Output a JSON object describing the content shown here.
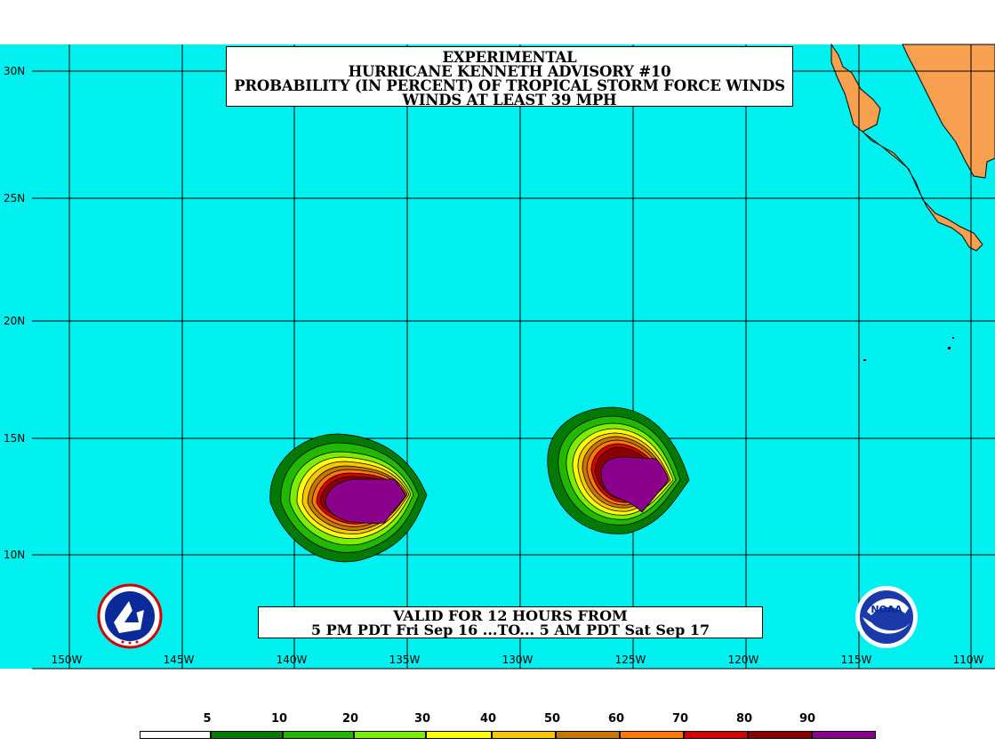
{
  "title": {
    "line1": "EXPERIMENTAL",
    "line2": "HURRICANE KENNETH ADVISORY #10",
    "line3": "PROBABILITY (IN PERCENT) OF TROPICAL STORM FORCE WINDS",
    "line4": "WINDS AT LEAST 39 MPH"
  },
  "valid": {
    "line1": "VALID FOR 12 HOURS FROM",
    "line2": "5 PM PDT Fri Sep 16 ...TO... 5 AM PDT Sat Sep 17"
  },
  "lat_labels": [
    "30N",
    "25N",
    "20N",
    "15N",
    "10N"
  ],
  "lon_labels": [
    "150W",
    "145W",
    "140W",
    "135W",
    "130W",
    "125W",
    "120W",
    "115W",
    "110W"
  ],
  "legend": {
    "ticks": [
      "5",
      "10",
      "20",
      "30",
      "40",
      "50",
      "60",
      "70",
      "80",
      "90"
    ],
    "colors": [
      "#ffffff",
      "#007a00",
      "#22b800",
      "#7cee00",
      "#ffff00",
      "#f7c800",
      "#c87800",
      "#ff7800",
      "#d40000",
      "#8a0000",
      "#8a008a"
    ]
  },
  "colors": {
    "ocean": "#00f0f0",
    "land": "#f7a050"
  },
  "logos": [
    "nws-logo",
    "noaa-logo"
  ]
}
